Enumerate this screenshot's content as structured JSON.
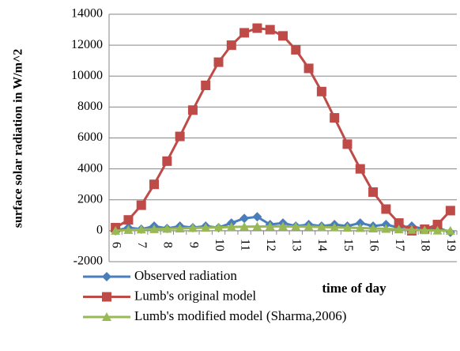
{
  "chart_data": {
    "type": "line",
    "y_axis_label": "surface solar radiation in W/m^2",
    "x_axis_label": "time of day",
    "categories": [
      "6",
      null,
      "7",
      null,
      "8",
      null,
      "9",
      null,
      "10",
      null,
      "11",
      null,
      "12",
      null,
      "13",
      null,
      "14",
      null,
      "15",
      null,
      "16",
      null,
      "17",
      null,
      "18",
      null,
      "19"
    ],
    "series": [
      {
        "name": "Observed radiation",
        "color": "#4a7ebb",
        "marker": "diamond",
        "values": [
          0,
          200,
          100,
          300,
          150,
          300,
          200,
          300,
          200,
          500,
          800,
          900,
          400,
          500,
          300,
          400,
          300,
          400,
          300,
          500,
          300,
          400,
          200,
          300,
          100,
          200,
          -100
        ]
      },
      {
        "name": "Lumb's original model",
        "color": "#be4b48",
        "marker": "square",
        "values": [
          200,
          700,
          1650,
          3000,
          4500,
          6100,
          7800,
          9400,
          10900,
          12000,
          12800,
          13100,
          13000,
          12600,
          11700,
          10500,
          9000,
          7300,
          5600,
          4000,
          2500,
          1400,
          500,
          0,
          100,
          400,
          1300
        ]
      },
      {
        "name": "Lumb's modified model (Sharma,2006)",
        "color": "#98b954",
        "marker": "triangle",
        "values": [
          0,
          50,
          80,
          100,
          130,
          150,
          180,
          200,
          220,
          240,
          260,
          270,
          280,
          280,
          270,
          260,
          240,
          220,
          200,
          180,
          150,
          120,
          90,
          60,
          30,
          10,
          0
        ]
      }
    ],
    "ylim": [
      -2000,
      14000
    ],
    "yticks": [
      -2000,
      0,
      2000,
      4000,
      6000,
      8000,
      10000,
      12000,
      14000
    ],
    "grid": true,
    "legend": "bottom"
  }
}
